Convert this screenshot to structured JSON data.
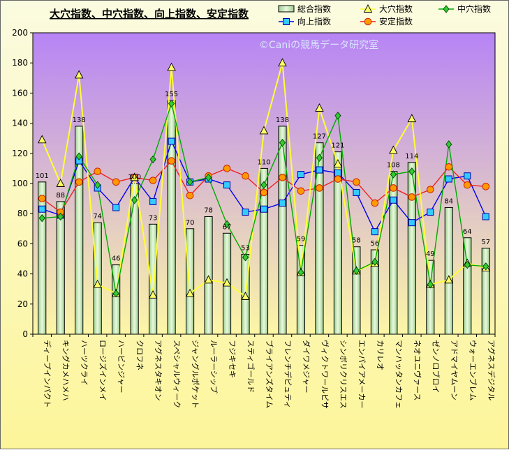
{
  "chart_data": {
    "type": "bar",
    "title": "大穴指数、中穴指数、向上指数、安定指数",
    "watermark": "©Caniの競馬データ研究室",
    "ylim": [
      0,
      200
    ],
    "yticks": [
      0,
      20,
      40,
      60,
      80,
      100,
      120,
      140,
      160,
      180,
      200
    ],
    "categories": [
      "ディープインパクト",
      "キングカメハメハ",
      "ハーツクライ",
      "ロージズインメイ",
      "ハービンジャー",
      "クロフネ",
      "アグネスタキオン",
      "スペシャルウィーク",
      "ジャングルポケット",
      "ルーラーシップ",
      "フジキセキ",
      "スティゴールド",
      "ブライアンズタイム",
      "フレンチデピュティ",
      "ダイワメジャー",
      "ヴィクトワールピサ",
      "シンボリクリスエス",
      "エンパイアメーカー",
      "カリレオ",
      "マンハッタンカフェ",
      "ネオユニヴァース",
      "ゼンノロブロイ",
      "アドマイヤムーン",
      "ウォーエンブレム",
      "アグネスデジタル"
    ],
    "series": [
      {
        "name": "総合指数",
        "type": "bar",
        "color": "#b7e4a8",
        "values": [
          101,
          88,
          138,
          74,
          46,
          100,
          73,
          155,
          70,
          78,
          67,
          53,
          110,
          138,
          59,
          127,
          121,
          58,
          56,
          108,
          114,
          49,
          84,
          64,
          57
        ]
      },
      {
        "name": "大穴指数",
        "type": "line",
        "color": "#ffff33",
        "values": [
          129,
          100,
          172,
          33,
          27,
          104,
          26,
          177,
          27,
          36,
          34,
          25,
          135,
          180,
          41,
          150,
          113,
          42,
          47,
          122,
          143,
          33,
          36,
          47,
          44
        ]
      },
      {
        "name": "中穴指数",
        "type": "line",
        "color": "#00aa00",
        "values": [
          77,
          78,
          118,
          99,
          27,
          89,
          116,
          153,
          101,
          104,
          73,
          51,
          99,
          127,
          41,
          117,
          145,
          42,
          48,
          106,
          108,
          33,
          126,
          46,
          45
        ]
      },
      {
        "name": "向上指数",
        "type": "line",
        "color": "#0000ee",
        "values": [
          83,
          79,
          115,
          97,
          84,
          104,
          88,
          128,
          101,
          103,
          99,
          81,
          83,
          87,
          106,
          109,
          107,
          94,
          68,
          89,
          74,
          81,
          103,
          105,
          78
        ]
      },
      {
        "name": "安定指数",
        "type": "line",
        "color": "#ee2222",
        "values": [
          90,
          81,
          101,
          108,
          101,
          104,
          102,
          115,
          92,
          105,
          110,
          105,
          94,
          104,
          95,
          97,
          103,
          101,
          87,
          97,
          91,
          96,
          111,
          99,
          98
        ]
      }
    ]
  }
}
